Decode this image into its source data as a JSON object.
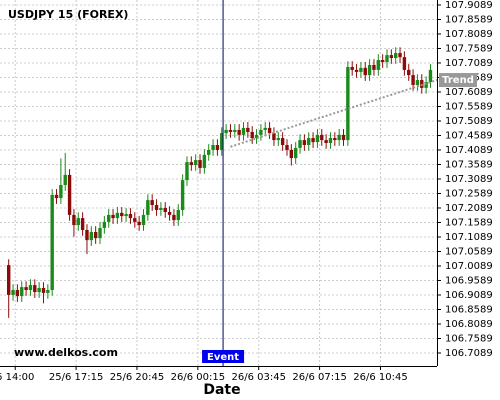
{
  "chart_data": {
    "type": "candlestick",
    "title": "USDJPY 15 (FOREX)",
    "watermark": "www.delkos.com",
    "x_label": "Date",
    "xlim": [
      -2,
      98.5
    ],
    "xticks": [
      {
        "value": 1.5,
        "label": "6 14:00"
      },
      {
        "value": 15.5,
        "label": "25/6 17:15"
      },
      {
        "value": 29.5,
        "label": "25/6 20:45"
      },
      {
        "value": 43.5,
        "label": "26/6 00:15"
      },
      {
        "value": 57.5,
        "label": "26/6 03:45"
      },
      {
        "value": 71.5,
        "label": "26/6 07:15"
      },
      {
        "value": 85.5,
        "label": "26/6 10:45"
      }
    ],
    "ylim": [
      106.664,
      107.926
    ],
    "yticks": [
      107.9089,
      107.8589,
      107.8089,
      107.7589,
      107.7089,
      107.6589,
      107.6089,
      107.5589,
      107.5089,
      107.4589,
      107.4089,
      107.3589,
      107.3089,
      107.2589,
      107.2089,
      107.1589,
      107.1089,
      107.0589,
      107.0089,
      106.9589,
      106.9089,
      106.8589,
      106.8089,
      106.7589,
      106.7089
    ],
    "grid": true,
    "up_color": "#1a8a1a",
    "down_color": "#8b0a0a",
    "open": [
      107.012,
      106.909,
      106.926,
      106.905,
      106.936,
      106.926,
      106.943,
      106.919,
      106.933,
      106.916,
      106.926,
      107.254,
      107.243,
      107.288,
      107.323,
      107.185,
      107.15,
      107.174,
      107.133,
      107.098,
      107.126,
      107.105,
      107.14,
      107.161,
      107.185,
      107.174,
      107.192,
      107.181,
      107.188,
      107.174,
      107.161,
      107.15,
      107.185,
      107.236,
      107.219,
      107.202,
      107.209,
      107.195,
      107.185,
      107.167,
      107.202,
      107.305,
      107.367,
      107.357,
      107.374,
      107.347,
      107.392,
      107.409,
      107.426,
      107.409,
      107.467,
      107.478,
      107.471,
      107.478,
      107.461,
      107.485,
      107.471,
      107.45,
      107.461,
      107.478,
      107.485,
      107.467,
      107.443,
      107.45,
      107.426,
      107.409,
      107.381,
      107.416,
      107.443,
      107.426,
      107.45,
      107.436,
      107.461,
      107.443,
      107.433,
      107.45,
      107.443,
      107.461,
      107.443,
      107.695,
      107.685,
      107.678,
      107.692,
      107.667,
      107.702,
      107.685,
      107.719,
      107.712,
      107.736,
      107.726,
      107.743,
      107.729,
      107.685,
      107.667,
      107.633,
      107.65,
      107.623,
      107.643
    ],
    "high": [
      107.032,
      106.946,
      106.946,
      106.956,
      106.956,
      106.963,
      106.963,
      106.953,
      106.953,
      106.946,
      107.274,
      107.274,
      107.38,
      107.399,
      107.343,
      107.205,
      107.194,
      107.194,
      107.153,
      107.146,
      107.146,
      107.16,
      107.181,
      107.205,
      107.205,
      107.212,
      107.212,
      107.208,
      107.208,
      107.194,
      107.181,
      107.205,
      107.256,
      107.256,
      107.239,
      107.229,
      107.229,
      107.215,
      107.205,
      107.222,
      107.325,
      107.387,
      107.387,
      107.394,
      107.394,
      107.412,
      107.429,
      107.446,
      107.446,
      107.487,
      107.498,
      107.498,
      107.498,
      107.498,
      107.505,
      107.505,
      107.491,
      107.481,
      107.498,
      107.505,
      107.505,
      107.487,
      107.47,
      107.47,
      107.446,
      107.429,
      107.436,
      107.463,
      107.463,
      107.47,
      107.47,
      107.481,
      107.481,
      107.463,
      107.47,
      107.47,
      107.481,
      107.481,
      107.715,
      107.715,
      107.705,
      107.712,
      107.712,
      107.722,
      107.722,
      107.739,
      107.739,
      107.756,
      107.756,
      107.763,
      107.763,
      107.749,
      107.705,
      107.687,
      107.67,
      107.67,
      107.663,
      107.705
    ],
    "low": [
      106.83,
      106.889,
      106.885,
      106.885,
      106.906,
      106.906,
      106.899,
      106.899,
      106.88,
      106.896,
      106.906,
      107.223,
      107.223,
      107.268,
      107.165,
      107.11,
      107.13,
      107.113,
      107.05,
      107.078,
      107.085,
      107.085,
      107.12,
      107.141,
      107.154,
      107.154,
      107.161,
      107.161,
      107.154,
      107.141,
      107.13,
      107.13,
      107.165,
      107.199,
      107.182,
      107.182,
      107.175,
      107.165,
      107.147,
      107.147,
      107.182,
      107.285,
      107.337,
      107.337,
      107.327,
      107.327,
      107.372,
      107.389,
      107.389,
      107.389,
      107.447,
      107.451,
      107.451,
      107.441,
      107.441,
      107.451,
      107.43,
      107.43,
      107.441,
      107.458,
      107.447,
      107.423,
      107.423,
      107.406,
      107.389,
      107.355,
      107.361,
      107.396,
      107.406,
      107.406,
      107.416,
      107.416,
      107.423,
      107.413,
      107.413,
      107.423,
      107.423,
      107.423,
      107.423,
      107.665,
      107.658,
      107.658,
      107.647,
      107.647,
      107.665,
      107.665,
      107.692,
      107.692,
      107.706,
      107.706,
      107.709,
      107.665,
      107.647,
      107.613,
      107.613,
      107.603,
      107.603,
      107.623
    ],
    "close": [
      106.909,
      106.926,
      106.905,
      106.936,
      106.926,
      106.943,
      106.919,
      106.933,
      106.916,
      106.926,
      107.254,
      107.243,
      107.288,
      107.323,
      107.185,
      107.15,
      107.174,
      107.133,
      107.098,
      107.126,
      107.105,
      107.14,
      107.161,
      107.185,
      107.174,
      107.192,
      107.181,
      107.188,
      107.174,
      107.161,
      107.15,
      107.185,
      107.236,
      107.219,
      107.202,
      107.209,
      107.195,
      107.185,
      107.167,
      107.202,
      107.305,
      107.367,
      107.357,
      107.374,
      107.347,
      107.392,
      107.409,
      107.426,
      107.409,
      107.467,
      107.478,
      107.471,
      107.478,
      107.461,
      107.485,
      107.471,
      107.45,
      107.461,
      107.478,
      107.485,
      107.467,
      107.443,
      107.45,
      107.426,
      107.409,
      107.381,
      107.416,
      107.443,
      107.426,
      107.45,
      107.436,
      107.461,
      107.443,
      107.433,
      107.45,
      107.443,
      107.461,
      107.443,
      107.695,
      107.685,
      107.678,
      107.692,
      107.667,
      107.702,
      107.685,
      107.719,
      107.712,
      107.736,
      107.726,
      107.743,
      107.729,
      107.685,
      107.667,
      107.633,
      107.65,
      107.623,
      107.643,
      107.685
    ],
    "event": {
      "label": "Event",
      "x": 49.3,
      "color": "#0000ee"
    },
    "trend": {
      "label": "Trend",
      "x": [
        51,
        98.5
      ],
      "y": [
        107.42,
        107.65
      ],
      "color": "#999999"
    }
  }
}
